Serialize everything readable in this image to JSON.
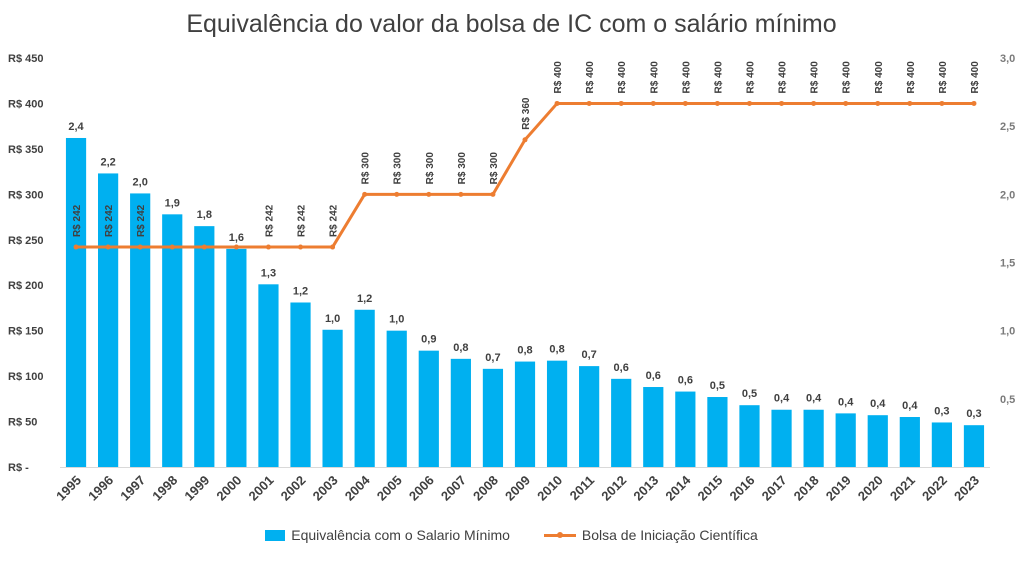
{
  "chart_data": {
    "type": "bar+line",
    "title": "Equivalência do valor da bolsa de IC com o salário mínimo",
    "categories": [
      "1995",
      "1996",
      "1997",
      "1998",
      "1999",
      "2000",
      "2001",
      "2002",
      "2003",
      "2004",
      "2005",
      "2006",
      "2007",
      "2008",
      "2009",
      "2010",
      "2011",
      "2012",
      "2013",
      "2014",
      "2015",
      "2016",
      "2017",
      "2018",
      "2019",
      "2020",
      "2021",
      "2022",
      "2023"
    ],
    "bar_series": {
      "name": "Equivalência com o Salario Mínimo",
      "color": "#00b0f0",
      "axis": "left",
      "values": [
        362,
        323,
        301,
        278,
        265,
        240,
        201,
        181,
        151,
        173,
        150,
        128,
        119,
        108,
        116,
        117,
        111,
        97,
        88,
        83,
        77,
        68,
        63,
        63,
        59,
        57,
        55,
        49,
        46
      ],
      "labels": [
        "2,4",
        "2,2",
        "2,0",
        "1,9",
        "1,8",
        "1,6",
        "1,3",
        "1,2",
        "1,0",
        "1,2",
        "1,0",
        "0,9",
        "0,8",
        "0,7",
        "0,8",
        "0,8",
        "0,7",
        "0,6",
        "0,6",
        "0,6",
        "0,5",
        "0,5",
        "0,4",
        "0,4",
        "0,4",
        "0,4",
        "0,4",
        "0,3",
        "0,3"
      ]
    },
    "line_series": {
      "name": "Bolsa de Iniciação Científica",
      "color": "#ed7d31",
      "axis": "left",
      "values": [
        242,
        242,
        242,
        242,
        242,
        242,
        242,
        242,
        242,
        300,
        300,
        300,
        300,
        300,
        360,
        400,
        400,
        400,
        400,
        400,
        400,
        400,
        400,
        400,
        400,
        400,
        400,
        400,
        400
      ],
      "labels": [
        "R$ 242",
        "R$ 242",
        "R$ 242",
        "",
        "",
        "",
        "R$ 242",
        "R$ 242",
        "R$ 242",
        "R$ 300",
        "R$ 300",
        "R$ 300",
        "R$ 300",
        "R$ 300",
        "R$ 360",
        "R$ 400",
        "R$ 400",
        "R$ 400",
        "R$ 400",
        "R$ 400",
        "R$ 400",
        "R$ 400",
        "R$ 400",
        "R$ 400",
        "R$ 400",
        "R$ 400",
        "R$ 400",
        "R$ 400",
        "R$ 400"
      ]
    },
    "left_axis": {
      "range": [
        0,
        450
      ],
      "ticks": [
        0,
        50,
        100,
        150,
        200,
        250,
        300,
        350,
        400,
        450
      ],
      "tick_labels": [
        "R$ -",
        "R$ 50",
        "R$ 100",
        "R$ 150",
        "R$ 200",
        "R$ 250",
        "R$ 300",
        "R$ 350",
        "R$ 400",
        "R$ 450"
      ]
    },
    "right_axis": {
      "range": [
        0,
        3.0
      ],
      "ticks": [
        0.5,
        1.0,
        1.5,
        2.0,
        2.5,
        3.0
      ],
      "tick_labels": [
        "0,5",
        "1,0",
        "1,5",
        "2,0",
        "2,5",
        "3,0"
      ]
    },
    "legend_position": "bottom",
    "grid": false
  },
  "legend": {
    "bar_label": "Equivalência com o Salario Mínimo",
    "line_label": "Bolsa de Iniciação Científica"
  }
}
